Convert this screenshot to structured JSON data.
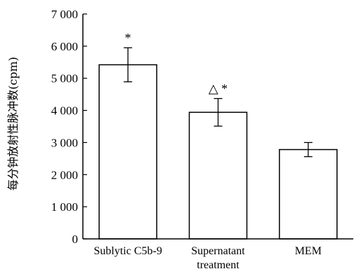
{
  "chart_data": {
    "type": "bar",
    "title": "",
    "xlabel": "",
    "ylabel": "每分钟放射性脉冲数(cpm)",
    "ylim": [
      0,
      7000
    ],
    "y_ticks": [
      0,
      1000,
      2000,
      3000,
      4000,
      5000,
      6000,
      7000
    ],
    "y_tick_labels": [
      "0",
      "1 000",
      "2 000",
      "3 000",
      "4 000",
      "5 000",
      "6 000",
      "7 000"
    ],
    "categories": [
      [
        "Sublytic C5b-9"
      ],
      [
        "Supernatant",
        "treatment"
      ],
      [
        "MEM"
      ]
    ],
    "values": [
      5420,
      3940,
      2780
    ],
    "error": [
      530,
      430,
      220
    ],
    "annotations": [
      "*",
      "△ *",
      ""
    ],
    "grid": false,
    "legend": "none",
    "colors": {
      "bar_fill": "#ffffff",
      "bar_stroke": "#000000",
      "axis": "#000000"
    }
  }
}
